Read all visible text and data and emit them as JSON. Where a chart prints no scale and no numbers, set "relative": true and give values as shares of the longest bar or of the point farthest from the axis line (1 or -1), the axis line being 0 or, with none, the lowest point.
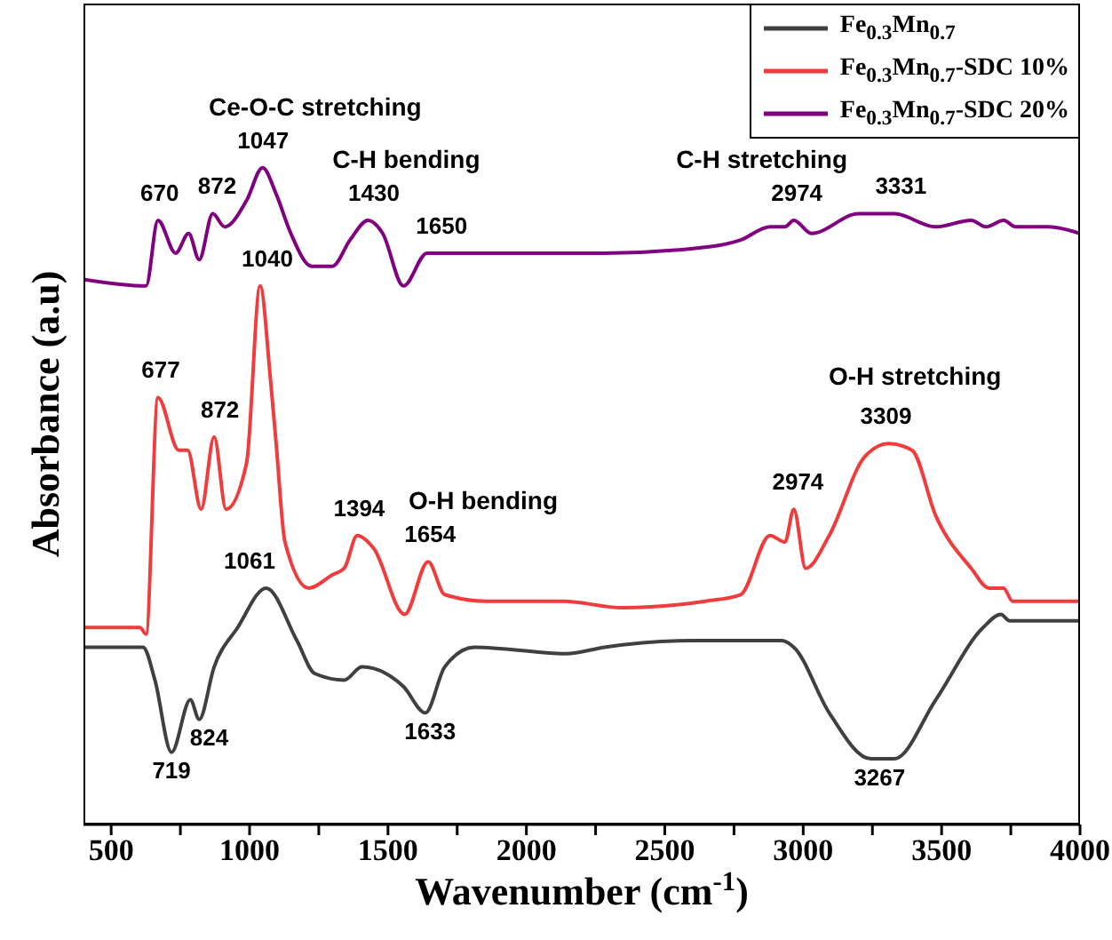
{
  "chart_data": {
    "type": "line",
    "relative": true,
    "xlabel": "Wavenumber (cm$^{-1}$)",
    "ylabel": "Absorbance (a.u)",
    "xlim": [
      400,
      4000
    ],
    "xticks": [
      500,
      {
        "value": 750,
        "label": null
      },
      1000,
      {
        "value": 1250,
        "label": null
      },
      1500,
      {
        "value": 1750,
        "label": null
      },
      2000,
      {
        "value": 2250,
        "label": null
      },
      2500,
      {
        "value": 2750,
        "label": null
      },
      3000,
      {
        "value": 3250,
        "label": null
      },
      3500,
      {
        "value": 3750,
        "label": null
      },
      4000
    ],
    "legend": "top right",
    "marker": "none",
    "line_style": "solid",
    "grid": false,
    "tick_labels": "x",
    "series": [
      {
        "name": "Fe$_{0.3}$Mn$_{0.7}$",
        "color": "#404040",
        "x": [
          400,
          615,
          658,
          718,
          786,
          818,
          872,
          957,
          1060,
          1171,
          1235,
          1342,
          1406,
          1492,
          1556,
          1635,
          1705,
          1812,
          2143,
          2282,
          2602,
          2923,
          2966,
          3094,
          3244,
          3329,
          3479,
          3650,
          3714,
          3746,
          4000
        ],
        "values": [
          0.27,
          0.27,
          0.22,
          0.11,
          0.19,
          0.16,
          0.24,
          0.3,
          0.36,
          0.28,
          0.23,
          0.22,
          0.24,
          0.23,
          0.21,
          0.17,
          0.24,
          0.27,
          0.26,
          0.27,
          0.28,
          0.28,
          0.27,
          0.17,
          0.1,
          0.1,
          0.19,
          0.3,
          0.32,
          0.31,
          0.31
        ]
      },
      {
        "name": "Fe$_{0.3}$Mn$_{0.7}$-SDC 10%",
        "color": "#f03c3c",
        "x": [
          400,
          604,
          626,
          669,
          744,
          776,
          825,
          872,
          915,
          989,
          1038,
          1075,
          1096,
          1128,
          1214,
          1299,
          1342,
          1389,
          1449,
          1560,
          1645,
          1705,
          1855,
          2133,
          2346,
          2646,
          2774,
          2880,
          2934,
          2966,
          3009,
          3094,
          3222,
          3308,
          3393,
          3479,
          3607,
          3671,
          3724,
          3756,
          4000
        ],
        "values": [
          0.3,
          0.3,
          0.29,
          0.65,
          0.57,
          0.57,
          0.48,
          0.59,
          0.48,
          0.55,
          0.82,
          0.68,
          0.58,
          0.43,
          0.36,
          0.38,
          0.39,
          0.44,
          0.42,
          0.32,
          0.4,
          0.35,
          0.34,
          0.34,
          0.33,
          0.34,
          0.35,
          0.44,
          0.43,
          0.48,
          0.39,
          0.44,
          0.56,
          0.58,
          0.57,
          0.47,
          0.39,
          0.36,
          0.36,
          0.34,
          0.34
        ]
      },
      {
        "name": "Fe$_{0.3}$Mn$_{0.7}$-SDC 20%",
        "color": "#800080",
        "x": [
          400,
          626,
          669,
          733,
          780,
          818,
          867,
          910,
          989,
          1047,
          1096,
          1149,
          1224,
          1299,
          1363,
          1428,
          1481,
          1556,
          1641,
          1748,
          1962,
          2282,
          2666,
          2774,
          2880,
          2934,
          2966,
          3030,
          3200,
          3329,
          3479,
          3607,
          3660,
          3724,
          3767,
          3885,
          4000
        ],
        "values": [
          0.83,
          0.82,
          0.92,
          0.87,
          0.9,
          0.86,
          0.93,
          0.91,
          0.95,
          1.0,
          0.96,
          0.9,
          0.85,
          0.85,
          0.89,
          0.92,
          0.9,
          0.82,
          0.87,
          0.87,
          0.87,
          0.87,
          0.88,
          0.89,
          0.91,
          0.91,
          0.92,
          0.9,
          0.93,
          0.93,
          0.91,
          0.92,
          0.91,
          0.92,
          0.91,
          0.91,
          0.9
        ]
      }
    ],
    "annotations": [
      "670",
      "872",
      "1047",
      "Ce-O-C stretching",
      "C-H bending",
      "1430",
      "1650",
      "C-H stretching",
      "2974",
      "3331",
      "1040",
      "677",
      "872",
      "1394",
      "O-H bending",
      "1654",
      "2974",
      "O-H stretching",
      "3309",
      "1061",
      "719",
      "824",
      "1633",
      "3267"
    ]
  }
}
